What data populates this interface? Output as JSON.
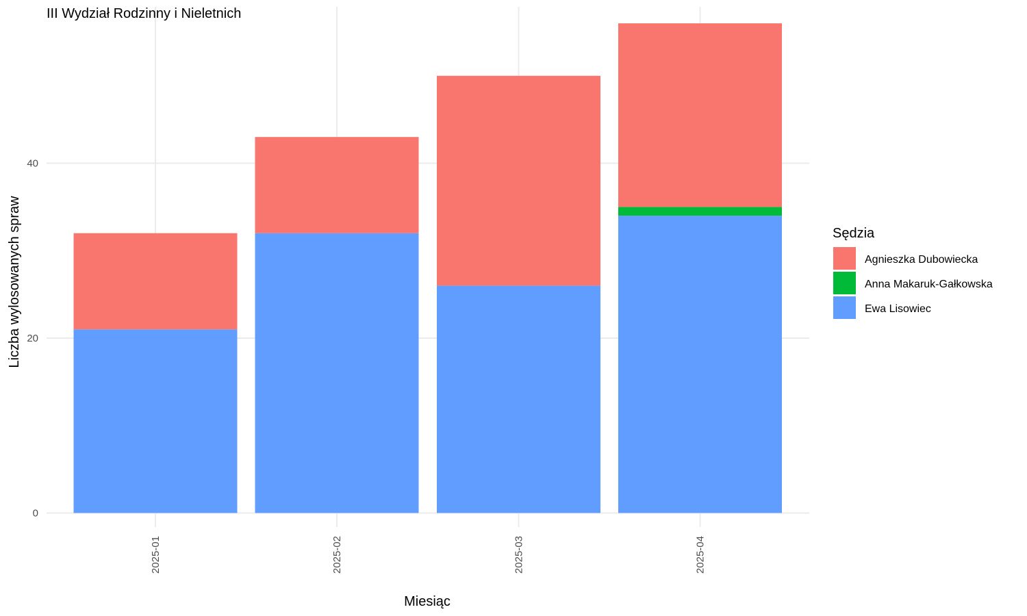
{
  "chart_data": {
    "type": "bar",
    "stacked": true,
    "title": "III Wydział Rodzinny i Nieletnich",
    "xlabel": "Miesiąc",
    "ylabel": "Liczba wylosowanych spraw",
    "categories": [
      "2025-01",
      "2025-02",
      "2025-03",
      "2025-04"
    ],
    "series": [
      {
        "name": "Ewa Lisowiec",
        "color": "#619CFF",
        "values": [
          21,
          32,
          26,
          34
        ]
      },
      {
        "name": "Anna Makaruk-Gałkowska",
        "color": "#00BA38",
        "values": [
          0,
          0,
          0,
          1
        ]
      },
      {
        "name": "Agnieszka Dubowiecka",
        "color": "#F8766D",
        "values": [
          11,
          11,
          24,
          21
        ]
      }
    ],
    "legend_order": [
      "Agnieszka Dubowiecka",
      "Anna Makaruk-Gałkowska",
      "Ewa Lisowiec"
    ],
    "legend_title": "Sędzia",
    "legend_position": "right",
    "ylim": [
      0,
      56
    ],
    "y_ticks": [
      0,
      20,
      40
    ],
    "grid": true,
    "x_tick_rotation": "vertical"
  }
}
